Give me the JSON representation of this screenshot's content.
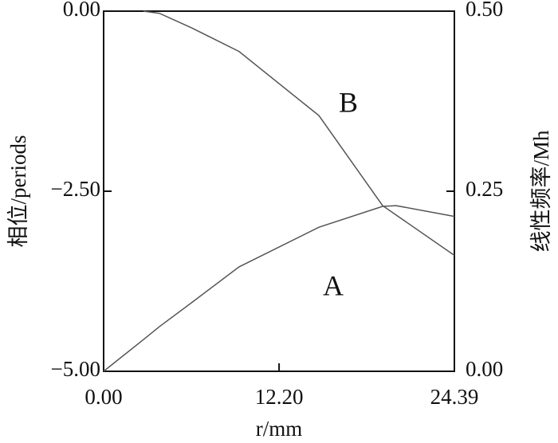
{
  "chart_data": {
    "type": "line",
    "x_label": "r/mm",
    "y_label": "相位/periods",
    "y2_label": "线性频率/Mh",
    "x": [
      0,
      2.77,
      3.88,
      6.1,
      9.42,
      14.97,
      19.4,
      20.34,
      24.39
    ],
    "series": [
      {
        "name": "B",
        "color": "#555555",
        "values": [
          null,
          0,
          -0.03,
          -0.23,
          -0.56,
          -1.45,
          -2.7,
          -2.83,
          -3.39
        ]
      },
      {
        "name": "A",
        "color": "#555555",
        "axis": "y2",
        "values": [
          0,
          0.044,
          0.062,
          0.095,
          0.145,
          0.2,
          0.229,
          0.23,
          0.215
        ]
      }
    ],
    "xlim": [
      0,
      24.39
    ],
    "xticks": [
      {
        "value": 0,
        "label": "0.00"
      },
      {
        "value": 12.2,
        "label": "12.20"
      },
      {
        "value": 24.39,
        "label": "24.39"
      }
    ],
    "ylim": [
      -5,
      0
    ],
    "yticks": [
      {
        "value": -5,
        "label": "−5.00"
      },
      {
        "value": -2.5,
        "label": "−2.50"
      },
      {
        "value": 0,
        "label": "0.00"
      }
    ],
    "y2lim": [
      0,
      0.5
    ],
    "y2ticks": [
      {
        "value": 0,
        "label": "0.00"
      },
      {
        "value": 0.25,
        "label": "0.25"
      },
      {
        "value": 0.5,
        "label": "0.50"
      }
    ]
  }
}
